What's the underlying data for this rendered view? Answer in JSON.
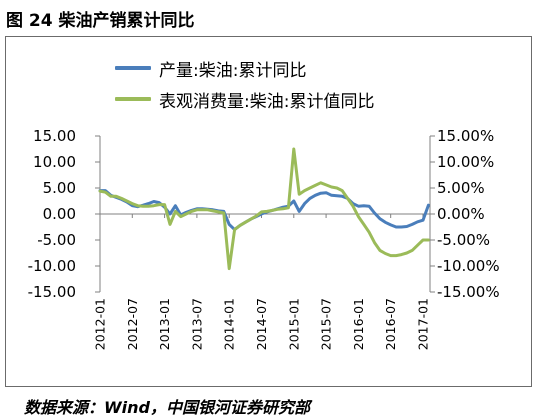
{
  "chart_data": {
    "type": "line",
    "title": "图 24 柴油产销累计同比",
    "xlabel": "",
    "ylabel": "",
    "grid": false,
    "legend_position": "top-left",
    "ylim": [
      -15,
      15
    ],
    "y2lim": [
      -15,
      15
    ],
    "y_ticks": [
      "15.00",
      "10.00",
      "5.00",
      "0.00",
      "-5.00",
      "-10.00",
      "-15.00"
    ],
    "y2_ticks": [
      "15.00%",
      "10.00%",
      "5.00%",
      "0.00%",
      "-5.00%",
      "-10.00%",
      "-15.00%"
    ],
    "x_ticks": [
      "2012-01",
      "2012-07",
      "2013-01",
      "2013-07",
      "2014-01",
      "2014-07",
      "2015-01",
      "2015-07",
      "2016-01",
      "2016-07",
      "2017-01"
    ],
    "x": [
      "2012-01",
      "2012-02",
      "2012-03",
      "2012-04",
      "2012-05",
      "2012-06",
      "2012-07",
      "2012-08",
      "2012-09",
      "2012-10",
      "2012-11",
      "2012-12",
      "2013-01",
      "2013-02",
      "2013-03",
      "2013-04",
      "2013-05",
      "2013-06",
      "2013-07",
      "2013-08",
      "2013-09",
      "2013-10",
      "2013-11",
      "2013-12",
      "2014-01",
      "2014-02",
      "2014-03",
      "2014-04",
      "2014-05",
      "2014-06",
      "2014-07",
      "2014-08",
      "2014-09",
      "2014-10",
      "2014-11",
      "2014-12",
      "2015-01",
      "2015-02",
      "2015-03",
      "2015-04",
      "2015-05",
      "2015-06",
      "2015-07",
      "2015-08",
      "2015-09",
      "2015-10",
      "2015-11",
      "2015-12",
      "2016-01",
      "2016-02",
      "2016-03",
      "2016-04",
      "2016-05",
      "2016-06",
      "2016-07",
      "2016-08",
      "2016-09",
      "2016-10",
      "2016-11",
      "2016-12",
      "2017-01",
      "2017-02"
    ],
    "series": [
      {
        "name": "产量:柴油:累计同比",
        "color": "#4a7ebb",
        "values": [
          4.5,
          4.5,
          3.6,
          3.2,
          2.8,
          2.3,
          1.6,
          1.4,
          1.7,
          2.0,
          2.4,
          2.2,
          1.3,
          0.0,
          1.6,
          -0.2,
          0.3,
          0.7,
          1.0,
          1.0,
          0.9,
          0.8,
          0.6,
          0.5,
          -2.0,
          -3.0,
          -2.2,
          -1.6,
          -1.0,
          -0.5,
          0.0,
          0.4,
          0.7,
          1.0,
          1.3,
          1.5,
          2.5,
          0.5,
          2.0,
          3.0,
          3.6,
          4.0,
          4.1,
          3.6,
          3.5,
          3.4,
          3.0,
          2.0,
          1.5,
          1.6,
          1.5,
          0.2,
          -0.9,
          -1.6,
          -2.1,
          -2.5,
          -2.5,
          -2.4,
          -2.0,
          -1.5,
          -1.2,
          1.7
        ]
      },
      {
        "name": "表观消费量:柴油:累计值同比",
        "color": "#9bbb59",
        "values": [
          4.4,
          4.2,
          3.4,
          3.4,
          3.0,
          2.5,
          2.0,
          1.6,
          1.5,
          1.5,
          1.6,
          1.8,
          1.8,
          -2.0,
          0.5,
          -0.5,
          0.0,
          0.5,
          0.8,
          0.8,
          0.8,
          0.6,
          0.4,
          0.2,
          -10.5,
          -3.0,
          -2.2,
          -1.6,
          -1.0,
          -0.4,
          0.4,
          0.5,
          0.7,
          0.9,
          1.0,
          1.2,
          12.5,
          3.8,
          4.5,
          5.0,
          5.5,
          6.0,
          5.6,
          5.2,
          5.0,
          4.5,
          3.0,
          1.5,
          -0.5,
          -2.0,
          -3.5,
          -5.5,
          -7.0,
          -7.6,
          -8.0,
          -8.0,
          -7.8,
          -7.5,
          -7.0,
          -6.0,
          -5.0,
          -5.0
        ]
      }
    ]
  },
  "source": "数据来源：Wind，中国银河证券研究部"
}
